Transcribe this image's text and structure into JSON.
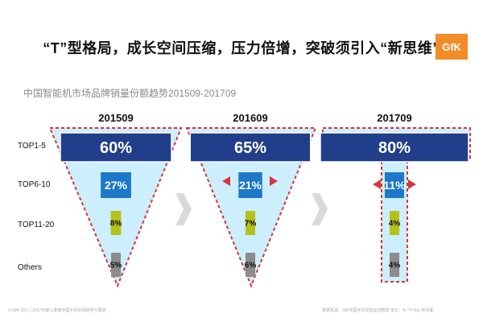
{
  "header": {
    "title": "“T”型格局，成长空间压缩，压力倍增，突破须引入“新思维”",
    "logo_text": "GfK"
  },
  "chart_data": {
    "type": "bar",
    "title": "中国智能机市场品牌销量份额趋势201509-201709",
    "categories": [
      "TOP1-5",
      "TOP6-10",
      "TOP11-20",
      "Others"
    ],
    "panels": [
      {
        "period": "201509",
        "values": [
          60,
          27,
          8,
          5
        ],
        "labels": [
          "60%",
          "27%",
          "8%",
          "5%"
        ]
      },
      {
        "period": "201609",
        "values": [
          65,
          21,
          7,
          6
        ],
        "labels": [
          "65%",
          "21%",
          "7%",
          "6%"
        ]
      },
      {
        "period": "201709",
        "values": [
          80,
          11,
          4,
          4
        ],
        "labels": [
          "80%",
          "11%",
          "4%",
          "4%"
        ]
      }
    ],
    "unit": "%",
    "colors": {
      "top1_5": "#213e8a",
      "top6_10": "#1e78c8",
      "top11_20": "#b4c31a",
      "others": "#8c8c8c",
      "fill": "#cdeefc",
      "outline": "#d8343c",
      "chevron": "#d9d9d9"
    }
  },
  "footer": {
    "left": "© GfK 2017 | 2017年第三季度中国手机市场趋势与展望",
    "right": "数据来源：GfK中国手机零售监测数据   单位：%   *T=Top 卖货量"
  }
}
